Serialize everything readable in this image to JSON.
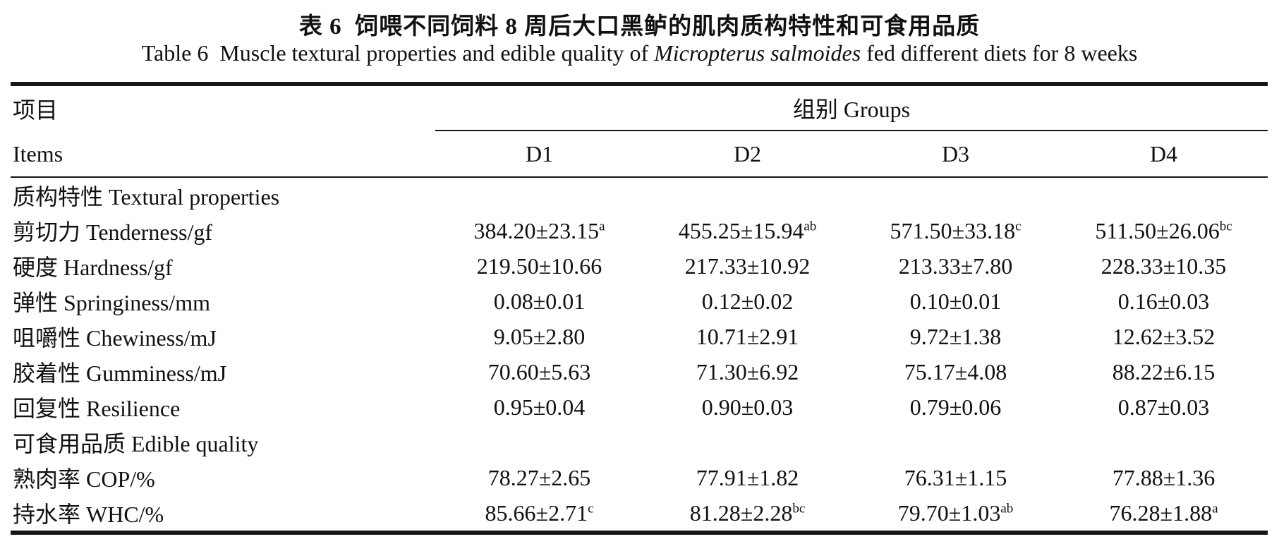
{
  "titles": {
    "zh": "表 6  饲喂不同饲料 8 周后大口黑鲈的肌肉质构特性和可食用品质",
    "en_prefix": "Table 6  Muscle textural properties and edible quality of ",
    "en_italic": "Micropterus salmoides",
    "en_suffix": " fed different diets for 8 weeks"
  },
  "table": {
    "items_header_zh": "项目",
    "items_header_en": "Items",
    "groups_header": "组别 Groups",
    "group_columns": {
      "c0": "D1",
      "c1": "D2",
      "c2": "D3",
      "c3": "D4"
    },
    "rows": [
      {
        "type": "section",
        "label": "质构特性 Textural properties"
      },
      {
        "type": "data",
        "label": "剪切力 Tenderness/gf",
        "cells": [
          {
            "v": "384.20±23.15",
            "s": "a"
          },
          {
            "v": "455.25±15.94",
            "s": "ab"
          },
          {
            "v": "571.50±33.18",
            "s": "c"
          },
          {
            "v": "511.50±26.06",
            "s": "bc"
          }
        ]
      },
      {
        "type": "data",
        "label": "硬度 Hardness/gf",
        "cells": [
          {
            "v": "219.50±10.66",
            "s": ""
          },
          {
            "v": "217.33±10.92",
            "s": ""
          },
          {
            "v": "213.33±7.80",
            "s": ""
          },
          {
            "v": "228.33±10.35",
            "s": ""
          }
        ]
      },
      {
        "type": "data",
        "label": "弹性 Springiness/mm",
        "cells": [
          {
            "v": "0.08±0.01",
            "s": ""
          },
          {
            "v": "0.12±0.02",
            "s": ""
          },
          {
            "v": "0.10±0.01",
            "s": ""
          },
          {
            "v": "0.16±0.03",
            "s": ""
          }
        ]
      },
      {
        "type": "data",
        "label": "咀嚼性 Chewiness/mJ",
        "cells": [
          {
            "v": "9.05±2.80",
            "s": ""
          },
          {
            "v": "10.71±2.91",
            "s": ""
          },
          {
            "v": "9.72±1.38",
            "s": ""
          },
          {
            "v": "12.62±3.52",
            "s": ""
          }
        ]
      },
      {
        "type": "data",
        "label": "胶着性 Gumminess/mJ",
        "cells": [
          {
            "v": "70.60±5.63",
            "s": ""
          },
          {
            "v": "71.30±6.92",
            "s": ""
          },
          {
            "v": "75.17±4.08",
            "s": ""
          },
          {
            "v": "88.22±6.15",
            "s": ""
          }
        ]
      },
      {
        "type": "data",
        "label": "回复性 Resilience",
        "cells": [
          {
            "v": "0.95±0.04",
            "s": ""
          },
          {
            "v": "0.90±0.03",
            "s": ""
          },
          {
            "v": "0.79±0.06",
            "s": ""
          },
          {
            "v": "0.87±0.03",
            "s": ""
          }
        ]
      },
      {
        "type": "section",
        "label": "可食用品质 Edible quality"
      },
      {
        "type": "data",
        "label": "熟肉率 COP/%",
        "cells": [
          {
            "v": "78.27±2.65",
            "s": ""
          },
          {
            "v": "77.91±1.82",
            "s": ""
          },
          {
            "v": "76.31±1.15",
            "s": ""
          },
          {
            "v": "77.88±1.36",
            "s": ""
          }
        ]
      },
      {
        "type": "data",
        "label": "持水率 WHC/%",
        "cells": [
          {
            "v": "85.66±2.71",
            "s": "c"
          },
          {
            "v": "81.28±2.28",
            "s": "bc"
          },
          {
            "v": "79.70±1.03",
            "s": "ab"
          },
          {
            "v": "76.28±1.88",
            "s": "a"
          }
        ]
      }
    ]
  }
}
